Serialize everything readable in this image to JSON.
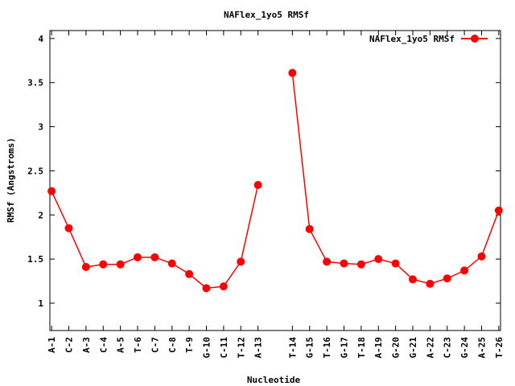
{
  "chart_data": {
    "type": "line",
    "title": "NAFlex_1yo5 RMSf",
    "xlabel": "Nucleotide",
    "ylabel": "RMSf (Angstroms)",
    "ylim": [
      0.69,
      4.09
    ],
    "xlim": [
      0.9,
      27.1
    ],
    "yticks": [
      "1",
      "1.5",
      "2",
      "2.5",
      "3",
      "3.5",
      "4"
    ],
    "ytick_values": [
      1,
      1.5,
      2,
      2.5,
      3,
      3.5,
      4
    ],
    "grid": false,
    "legend": {
      "placement": "top-right",
      "label": "NAFlex_1yo5 RMSf"
    },
    "color": "#ff0000",
    "series": [
      {
        "name": "NAFlex_1yo5 RMSf",
        "segments": [
          {
            "x": [
              1,
              2,
              3,
              4,
              5,
              6,
              7,
              8,
              9,
              10,
              11,
              12,
              13
            ],
            "labels": [
              "A-1",
              "C-2",
              "A-3",
              "C-4",
              "A-5",
              "T-6",
              "C-7",
              "C-8",
              "T-9",
              "G-10",
              "C-11",
              "T-12",
              "A-13"
            ],
            "values": [
              2.27,
              1.85,
              1.41,
              1.44,
              1.44,
              1.52,
              1.52,
              1.45,
              1.33,
              1.17,
              1.19,
              1.47,
              2.34
            ]
          },
          {
            "x": [
              15,
              16,
              17,
              18,
              19,
              20,
              21,
              22,
              23,
              24,
              25,
              26,
              27
            ],
            "labels": [
              "T-14",
              "G-15",
              "T-16",
              "G-17",
              "T-18",
              "A-19",
              "G-20",
              "G-21",
              "A-22",
              "C-23",
              "G-24",
              "A-25",
              "T-26"
            ],
            "values": [
              3.61,
              1.84,
              1.47,
              1.45,
              1.44,
              1.5,
              1.45,
              1.27,
              1.22,
              1.28,
              1.37,
              1.53,
              2.05
            ]
          }
        ]
      }
    ]
  }
}
